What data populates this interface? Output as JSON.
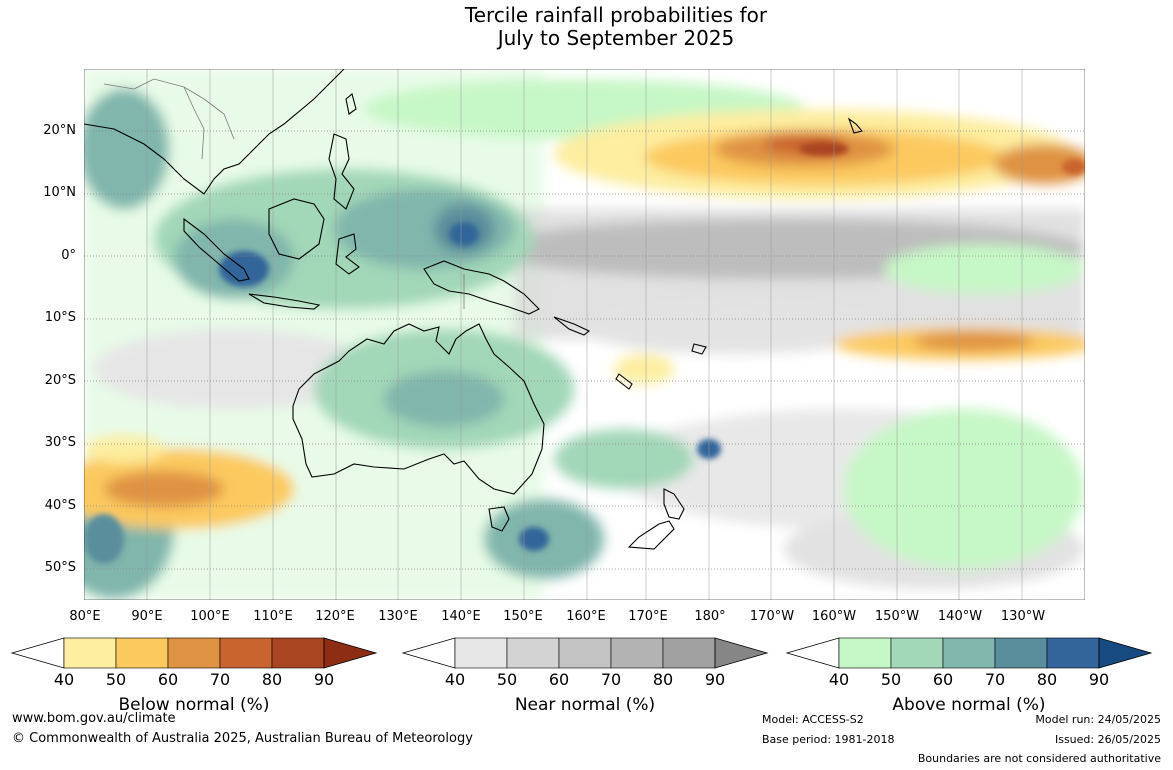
{
  "title_line1": "Tercile rainfall probabilities for",
  "title_line2": "July to September 2025",
  "lat_labels": [
    "20°N",
    "10°N",
    "0°",
    "10°S",
    "20°S",
    "30°S",
    "40°S",
    "50°S"
  ],
  "lon_labels": [
    "80°E",
    "90°E",
    "100°E",
    "110°E",
    "120°E",
    "130°E",
    "140°E",
    "150°E",
    "160°E",
    "170°E",
    "180°",
    "170°W",
    "160°W",
    "150°W",
    "140°W",
    "130°W"
  ],
  "colorbars": [
    {
      "name": "below",
      "title": "Below normal (%)",
      "ticks": [
        "40",
        "50",
        "60",
        "70",
        "80",
        "90"
      ],
      "colors": [
        "#fdeea0",
        "#fcc95f",
        "#df9342",
        "#c9642f",
        "#aa4521",
        "#8c2d14"
      ]
    },
    {
      "name": "near",
      "title": "Near normal (%)",
      "ticks": [
        "40",
        "50",
        "60",
        "70",
        "80",
        "90"
      ],
      "colors": [
        "#e6e6e6",
        "#d3d3d3",
        "#c3c3c3",
        "#b3b3b3",
        "#a1a1a1",
        "#868686"
      ]
    },
    {
      "name": "above",
      "title": "Above normal (%)",
      "ticks": [
        "40",
        "50",
        "60",
        "70",
        "80",
        "90"
      ],
      "colors": [
        "#c6f7c6",
        "#a2d7b8",
        "#80b6ac",
        "#5a8e9c",
        "#33659a",
        "#174a80"
      ]
    }
  ],
  "footer": {
    "website": "www.bom.gov.au/climate",
    "copyright": "© Commonwealth of Australia 2025, Australian Bureau of Meteorology",
    "model": "Model: ACCESS-S2",
    "base_period": "Base period: 1981-2018",
    "model_run": "Model run: 24/05/2025",
    "issued": "Issued: 26/05/2025",
    "disclaimer": "Boundaries are not considered authoritative"
  }
}
